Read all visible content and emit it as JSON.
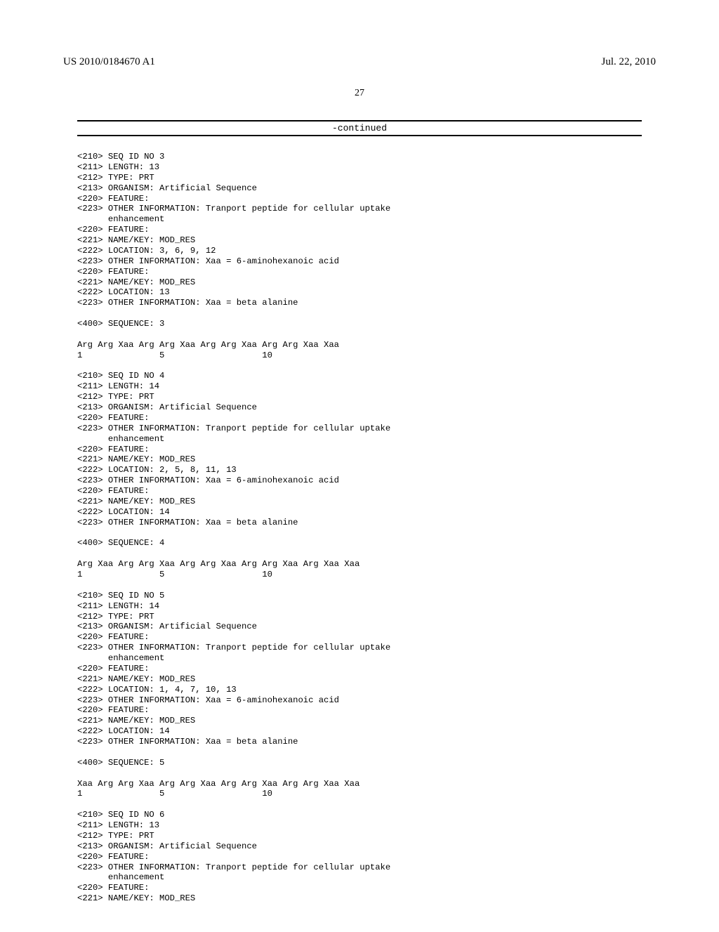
{
  "header": {
    "pubnum": "US 2010/0184670 A1",
    "date": "Jul. 22, 2010"
  },
  "page_number": "27",
  "continued_label": "-continued",
  "seqs": [
    {
      "lines": [
        "<210> SEQ ID NO 3",
        "<211> LENGTH: 13",
        "<212> TYPE: PRT",
        "<213> ORGANISM: Artificial Sequence",
        "<220> FEATURE:",
        "<223> OTHER INFORMATION: Tranport peptide for cellular uptake",
        "      enhancement",
        "<220> FEATURE:",
        "<221> NAME/KEY: MOD_RES",
        "<222> LOCATION: 3, 6, 9, 12",
        "<223> OTHER INFORMATION: Xaa = 6-aminohexanoic acid",
        "<220> FEATURE:",
        "<221> NAME/KEY: MOD_RES",
        "<222> LOCATION: 13",
        "<223> OTHER INFORMATION: Xaa = beta alanine",
        "",
        "<400> SEQUENCE: 3",
        "",
        "Arg Arg Xaa Arg Arg Xaa Arg Arg Xaa Arg Arg Xaa Xaa",
        "1               5                   10"
      ]
    },
    {
      "lines": [
        "<210> SEQ ID NO 4",
        "<211> LENGTH: 14",
        "<212> TYPE: PRT",
        "<213> ORGANISM: Artificial Sequence",
        "<220> FEATURE:",
        "<223> OTHER INFORMATION: Tranport peptide for cellular uptake",
        "      enhancement",
        "<220> FEATURE:",
        "<221> NAME/KEY: MOD_RES",
        "<222> LOCATION: 2, 5, 8, 11, 13",
        "<223> OTHER INFORMATION: Xaa = 6-aminohexanoic acid",
        "<220> FEATURE:",
        "<221> NAME/KEY: MOD_RES",
        "<222> LOCATION: 14",
        "<223> OTHER INFORMATION: Xaa = beta alanine",
        "",
        "<400> SEQUENCE: 4",
        "",
        "Arg Xaa Arg Arg Xaa Arg Arg Xaa Arg Arg Xaa Arg Xaa Xaa",
        "1               5                   10"
      ]
    },
    {
      "lines": [
        "<210> SEQ ID NO 5",
        "<211> LENGTH: 14",
        "<212> TYPE: PRT",
        "<213> ORGANISM: Artificial Sequence",
        "<220> FEATURE:",
        "<223> OTHER INFORMATION: Tranport peptide for cellular uptake",
        "      enhancement",
        "<220> FEATURE:",
        "<221> NAME/KEY: MOD_RES",
        "<222> LOCATION: 1, 4, 7, 10, 13",
        "<223> OTHER INFORMATION: Xaa = 6-aminohexanoic acid",
        "<220> FEATURE:",
        "<221> NAME/KEY: MOD_RES",
        "<222> LOCATION: 14",
        "<223> OTHER INFORMATION: Xaa = beta alanine",
        "",
        "<400> SEQUENCE: 5",
        "",
        "Xaa Arg Arg Xaa Arg Arg Xaa Arg Arg Xaa Arg Arg Xaa Xaa",
        "1               5                   10"
      ]
    },
    {
      "lines": [
        "<210> SEQ ID NO 6",
        "<211> LENGTH: 13",
        "<212> TYPE: PRT",
        "<213> ORGANISM: Artificial Sequence",
        "<220> FEATURE:",
        "<223> OTHER INFORMATION: Tranport peptide for cellular uptake",
        "      enhancement",
        "<220> FEATURE:",
        "<221> NAME/KEY: MOD_RES"
      ]
    }
  ]
}
